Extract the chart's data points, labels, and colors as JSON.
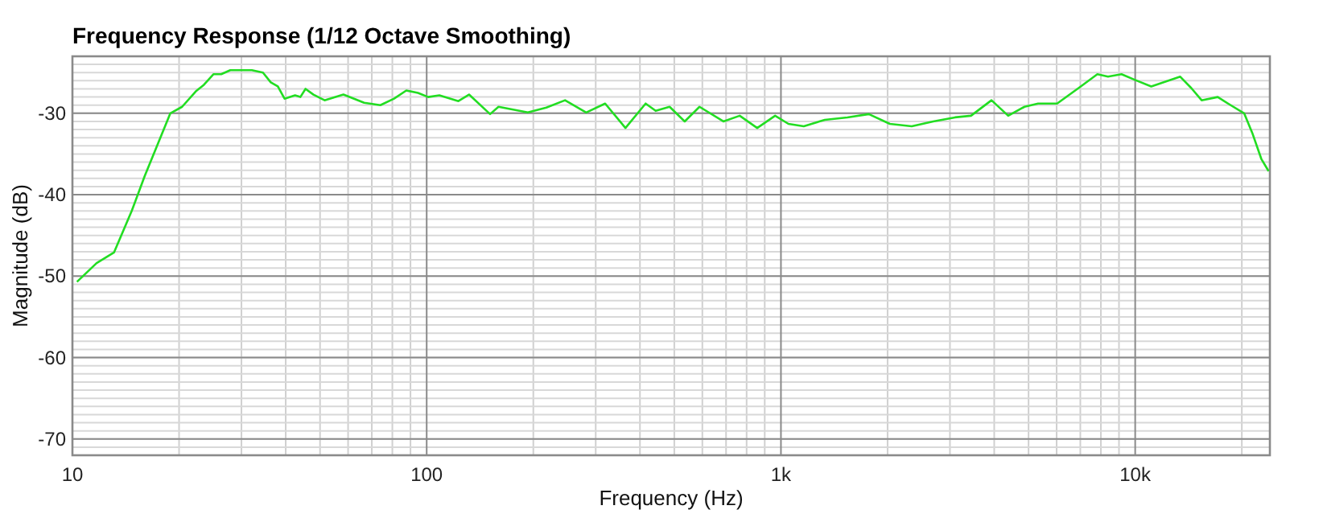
{
  "chart_data": {
    "type": "line",
    "title": "Frequency Response (1/12 Octave Smoothing)",
    "xlabel": "Frequency (Hz)",
    "ylabel": "Magnitude (dB)",
    "log": "x",
    "grid": true,
    "line_style": "solid",
    "xlim": [
      10,
      24000
    ],
    "ylim": [
      -72,
      -23
    ],
    "xticks": [
      10,
      100,
      {
        "value": 1000,
        "label": "1k"
      },
      {
        "value": 10000,
        "label": "10k"
      }
    ],
    "yticks": [
      -30,
      -40,
      -50,
      -60,
      -70
    ],
    "series": [
      {
        "color": "#22dd22",
        "x": [
          10.3,
          11.7,
          13.1,
          14.7,
          16.0,
          18.9,
          20.4,
          22.3,
          23.5,
          25.0,
          26.3,
          27.9,
          32.1,
          34.5,
          36.3,
          38.0,
          39.7,
          42.5,
          44.0,
          45.5,
          47.9,
          51.5,
          58.2,
          66.6,
          74.0,
          80.9,
          87.6,
          94.5,
          101,
          108.6,
          122.9,
          131.7,
          151,
          159.5,
          193,
          217.7,
          245.8,
          282,
          319,
          364,
          415,
          443,
          485,
          535,
          589,
          688,
          765,
          857,
          963,
          1050,
          1160,
          1330,
          1540,
          1770,
          2030,
          2340,
          2690,
          3100,
          3440,
          3930,
          4380,
          4870,
          5320,
          6020,
          6920,
          7820,
          8380,
          9150,
          9990,
          11100,
          13400,
          14400,
          15400,
          17100,
          18600,
          20300,
          21400,
          22700,
          23800
        ],
        "values": [
          -50.7,
          -48.4,
          -47.1,
          -42.0,
          -37.7,
          -30.0,
          -29.2,
          -27.3,
          -26.5,
          -25.2,
          -25.2,
          -24.7,
          -24.7,
          -25.0,
          -26.2,
          -26.7,
          -28.2,
          -27.8,
          -28.0,
          -27.0,
          -27.7,
          -28.4,
          -27.7,
          -28.7,
          -29.0,
          -28.2,
          -27.2,
          -27.5,
          -28.0,
          -27.8,
          -28.5,
          -27.7,
          -30.1,
          -29.2,
          -29.9,
          -29.3,
          -28.4,
          -29.9,
          -28.8,
          -31.8,
          -28.8,
          -29.7,
          -29.2,
          -31.0,
          -29.2,
          -31.0,
          -30.3,
          -31.8,
          -30.3,
          -31.3,
          -31.6,
          -30.8,
          -30.5,
          -30.1,
          -31.3,
          -31.6,
          -31.0,
          -30.5,
          -30.3,
          -28.4,
          -30.3,
          -29.2,
          -28.8,
          -28.8,
          -26.9,
          -25.2,
          -25.5,
          -25.2,
          -25.9,
          -26.7,
          -25.5,
          -26.9,
          -28.4,
          -28.0,
          -29.0,
          -30.0,
          -32.4,
          -35.6,
          -37.1
        ]
      }
    ]
  }
}
